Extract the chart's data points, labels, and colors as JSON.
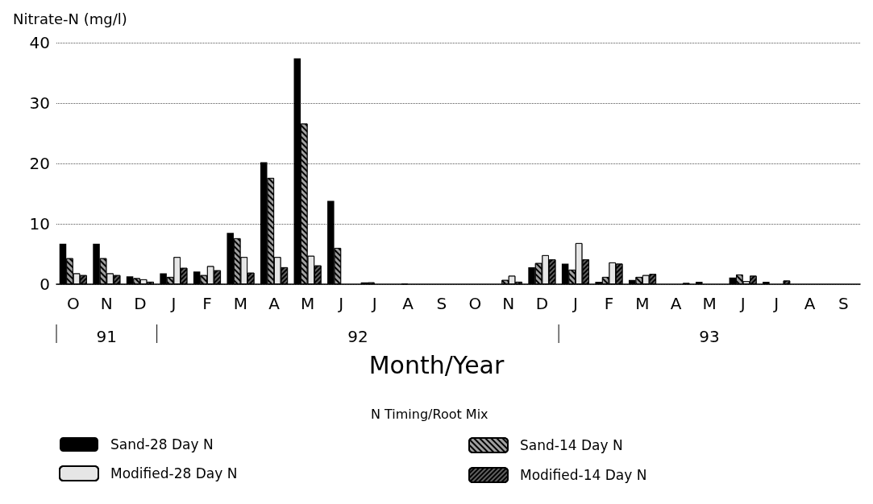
{
  "chart_data": {
    "type": "bar",
    "ylabel": "Nitrate-N (mg/l)",
    "xlabel": "Month/Year",
    "legend_title": "N Timing/Root Mix",
    "categories": [
      "O",
      "N",
      "D",
      "J",
      "F",
      "M",
      "A",
      "M",
      "J",
      "J",
      "A",
      "S",
      "O",
      "N",
      "D",
      "J",
      "F",
      "M",
      "A",
      "M",
      "J",
      "J",
      "A",
      "S"
    ],
    "series": [
      {
        "name": "Sand-28 Day N",
        "color": "#000000",
        "values": [
          6.7,
          6.7,
          1.3,
          1.8,
          2.1,
          8.5,
          20.2,
          37.4,
          13.8,
          0.3,
          0,
          0,
          0,
          null,
          2.8,
          3.4,
          0.4,
          0.7,
          null,
          0.4,
          1.1,
          0.4,
          0,
          0
        ]
      },
      {
        "name": "Sand-14 Day N",
        "color": "#a0a0a0",
        "values": [
          4.3,
          4.3,
          1.0,
          1.2,
          1.5,
          7.6,
          17.6,
          26.6,
          6.0,
          0.3,
          0.1,
          0,
          0,
          0.7,
          3.5,
          2.4,
          1.2,
          1.2,
          null,
          0,
          1.6,
          null,
          0,
          0
        ]
      },
      {
        "name": "Modified-28 Day N",
        "color": "#e6e6e6",
        "values": [
          1.8,
          1.8,
          0.8,
          4.5,
          3.0,
          4.5,
          4.5,
          4.7,
          0,
          0,
          0,
          0,
          0,
          1.4,
          4.8,
          6.8,
          3.6,
          1.5,
          0,
          0,
          0.5,
          0,
          0,
          0
        ]
      },
      {
        "name": "Modified-14 Day N",
        "color": "#606060",
        "values": [
          1.5,
          1.5,
          0.4,
          2.7,
          2.3,
          1.9,
          2.8,
          3.1,
          0,
          0,
          0,
          0,
          0,
          0.4,
          4.1,
          4.1,
          3.4,
          1.7,
          0.2,
          0,
          1.4,
          0.6,
          0,
          0
        ]
      }
    ],
    "annotations": [
      "91",
      "92",
      "93"
    ],
    "ylim": [
      0,
      40
    ],
    "yticks": [
      0,
      10,
      20,
      30,
      40
    ],
    "grid": "y",
    "legend": "bottom"
  }
}
